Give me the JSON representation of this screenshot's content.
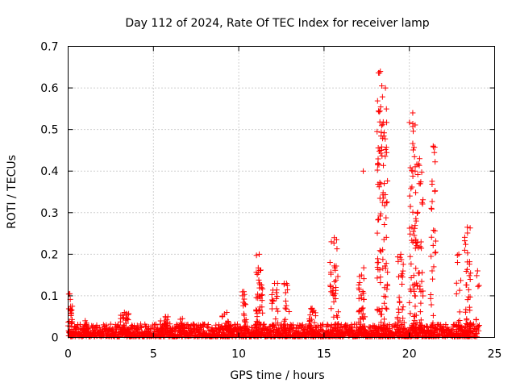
{
  "chart_data": {
    "type": "scatter",
    "title": "Day 112 of 2024, Rate Of TEC Index for receiver lamp",
    "xlabel": "GPS time / hours",
    "ylabel": "ROTI / TECUs",
    "xlim": [
      0,
      25
    ],
    "ylim": [
      0,
      0.7
    ],
    "x_ticks": [
      0,
      5,
      10,
      15,
      20,
      25
    ],
    "y_ticks": [
      0,
      0.1,
      0.2,
      0.3,
      0.4,
      0.5,
      0.6,
      0.7
    ],
    "x_tick_labels": [
      "0",
      "5",
      "10",
      "15",
      "20",
      "25"
    ],
    "y_tick_labels": [
      "0",
      "0.1",
      "0.2",
      "0.3",
      "0.4",
      "0.5",
      "0.6",
      "0.7"
    ],
    "grid": true,
    "marker": "+",
    "marker_color": "#ff0000",
    "baseline": {
      "x_range": [
        0,
        24
      ],
      "typical_max": 0.03
    },
    "clusters": [
      {
        "center": 0.1,
        "spread": 0.15,
        "peak": 0.105,
        "n": 30
      },
      {
        "center": 1.0,
        "spread": 0.1,
        "peak": 0.04,
        "n": 10
      },
      {
        "center": 3.3,
        "spread": 0.25,
        "peak": 0.06,
        "n": 25
      },
      {
        "center": 5.7,
        "spread": 0.3,
        "peak": 0.05,
        "n": 20
      },
      {
        "center": 6.7,
        "spread": 0.2,
        "peak": 0.045,
        "n": 12
      },
      {
        "center": 9.3,
        "spread": 0.3,
        "peak": 0.06,
        "n": 18
      },
      {
        "center": 10.3,
        "spread": 0.2,
        "peak": 0.11,
        "n": 18
      },
      {
        "center": 11.2,
        "spread": 0.2,
        "peak": 0.2,
        "n": 45
      },
      {
        "center": 12.1,
        "spread": 0.2,
        "peak": 0.13,
        "n": 20
      },
      {
        "center": 12.8,
        "spread": 0.2,
        "peak": 0.13,
        "n": 18
      },
      {
        "center": 14.3,
        "spread": 0.25,
        "peak": 0.07,
        "n": 20
      },
      {
        "center": 15.6,
        "spread": 0.25,
        "peak": 0.24,
        "n": 40
      },
      {
        "center": 17.2,
        "spread": 0.2,
        "peak": 0.15,
        "n": 30
      },
      {
        "center": 17.3,
        "spread": 0.05,
        "peak": 0.4,
        "n": 4
      },
      {
        "center": 18.3,
        "spread": 0.2,
        "peak": 0.64,
        "n": 70
      },
      {
        "center": 18.6,
        "spread": 0.15,
        "peak": 0.6,
        "n": 40
      },
      {
        "center": 19.5,
        "spread": 0.2,
        "peak": 0.2,
        "n": 25
      },
      {
        "center": 20.2,
        "spread": 0.2,
        "peak": 0.54,
        "n": 60
      },
      {
        "center": 20.6,
        "spread": 0.2,
        "peak": 0.43,
        "n": 45
      },
      {
        "center": 21.4,
        "spread": 0.15,
        "peak": 0.46,
        "n": 30
      },
      {
        "center": 22.9,
        "spread": 0.15,
        "peak": 0.2,
        "n": 12
      },
      {
        "center": 23.4,
        "spread": 0.2,
        "peak": 0.265,
        "n": 35
      },
      {
        "center": 24.0,
        "spread": 0.1,
        "peak": 0.16,
        "n": 8
      }
    ]
  }
}
